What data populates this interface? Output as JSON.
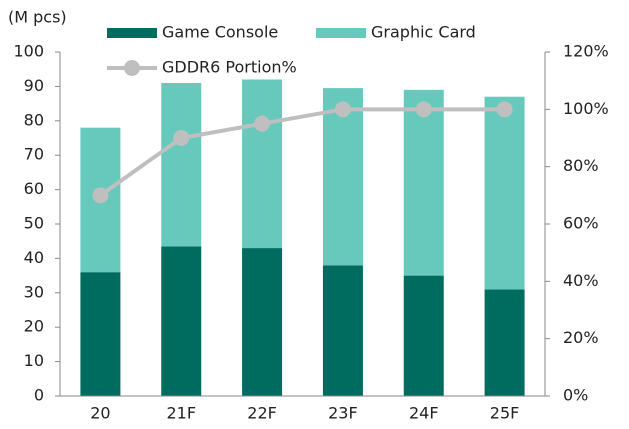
{
  "chart_data": {
    "type": "bar",
    "stacked": true,
    "y_label": "(M pcs)",
    "categories": [
      "20",
      "21F",
      "22F",
      "23F",
      "24F",
      "25F"
    ],
    "series": [
      {
        "name": "Game Console",
        "type": "bar",
        "color": "#006b5f",
        "values": [
          36,
          43.5,
          43,
          38,
          35,
          31
        ]
      },
      {
        "name": "Graphic Card",
        "type": "bar",
        "color": "#66c9bb",
        "values": [
          42,
          47.5,
          49,
          51.5,
          54,
          56
        ]
      },
      {
        "name": "GDDR6 Portion%",
        "type": "line",
        "axis": "y2",
        "color": "#bfbfbf",
        "values": [
          70,
          90,
          95,
          100,
          100,
          100
        ]
      }
    ],
    "ylim": [
      0,
      100
    ],
    "yticks": [
      0,
      10,
      20,
      30,
      40,
      50,
      60,
      70,
      80,
      90,
      100
    ],
    "y2lim": [
      0,
      120
    ],
    "y2ticks": [
      {
        "value": 0,
        "label": "0%"
      },
      {
        "value": 20,
        "label": "20%"
      },
      {
        "value": 40,
        "label": "40%"
      },
      {
        "value": 60,
        "label": "60%"
      },
      {
        "value": 80,
        "label": "80%"
      },
      {
        "value": 100,
        "label": "100%"
      },
      {
        "value": 120,
        "label": "120%"
      }
    ],
    "grid": false
  }
}
